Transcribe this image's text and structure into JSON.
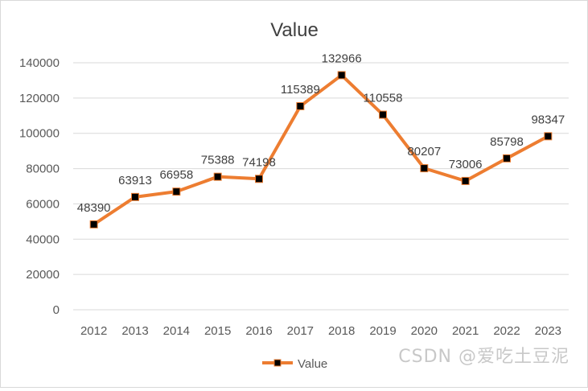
{
  "chart_data": {
    "type": "line",
    "title": "Value",
    "x": [
      "2012",
      "2013",
      "2014",
      "2015",
      "2016",
      "2017",
      "2018",
      "2019",
      "2020",
      "2021",
      "2022",
      "2023"
    ],
    "series": [
      {
        "name": "Value",
        "values": [
          48390,
          63913,
          66958,
          75388,
          74198,
          115389,
          132966,
          110558,
          80207,
          73006,
          85798,
          98347
        ]
      }
    ],
    "y_ticks": [
      0,
      20000,
      40000,
      60000,
      80000,
      100000,
      120000,
      140000
    ],
    "ylim": [
      0,
      140000
    ],
    "grid": true,
    "legend": "bottom",
    "colors": {
      "line": "#ED7D31",
      "marker": "#000000",
      "grid": "#d9d9d9",
      "text": "#595959",
      "title": "#404040"
    }
  },
  "watermark": "CSDN @爱吃土豆泥"
}
